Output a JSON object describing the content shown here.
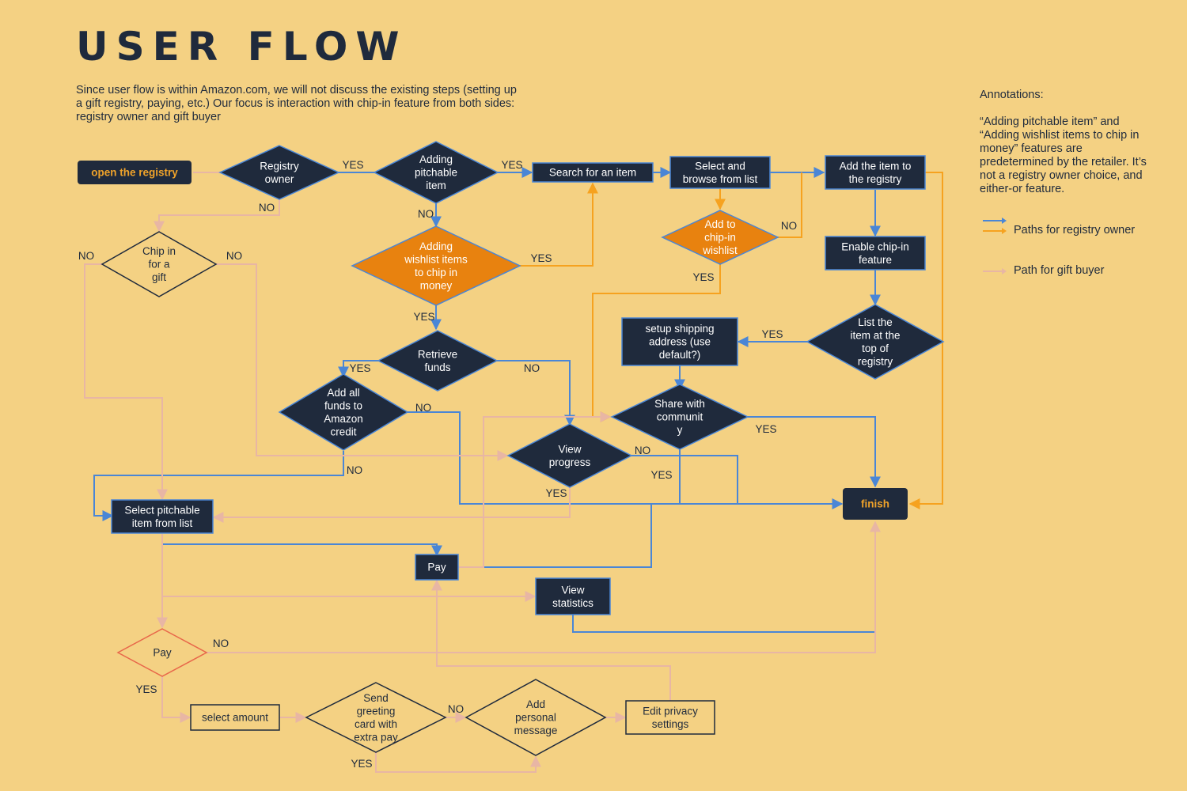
{
  "title": "USER FLOW",
  "intro": "Since user flow is within Amazon.com, we will not discuss the existing steps (setting up a gift registry, paying, etc.) Our focus is interaction with chip-in feature from both sides: registry owner and gift buyer",
  "annotations": {
    "heading": "Annotations:",
    "note": "“Adding pitchable item” and “Adding wishlist items to chip in money” features are predetermined by the retailer. It’s not a registry owner choice, and either-or feature.",
    "legend_owner": "Paths for registry owner",
    "legend_buyer": "Path for gift buyer"
  },
  "colors": {
    "background": "#f4d183",
    "node_dark": "#1f2a3c",
    "node_orange": "#e8820f",
    "owner_blue": "#4a86d6",
    "owner_orange": "#f6a21f",
    "buyer_pink": "#e8b6a4",
    "node_text_light": "#ffffff",
    "node_text_orange": "#f0a32a"
  },
  "nodes": [
    {
      "id": "open-registry",
      "lines": [
        "open the registry"
      ]
    },
    {
      "id": "registry-owner",
      "lines": [
        "Registry",
        "owner"
      ]
    },
    {
      "id": "adding-pitchable",
      "lines": [
        "Adding",
        "pitchable",
        "item"
      ]
    },
    {
      "id": "search-item",
      "lines": [
        "Search for an item"
      ]
    },
    {
      "id": "select-browse",
      "lines": [
        "Select and",
        "browse from list"
      ]
    },
    {
      "id": "add-to-registry",
      "lines": [
        "Add the item to",
        "the registry"
      ]
    },
    {
      "id": "chip-in-gift",
      "lines": [
        "Chip in",
        "for a",
        "gift"
      ]
    },
    {
      "id": "adding-wishlist",
      "lines": [
        "Adding",
        "wishlist items",
        "to chip in",
        "money"
      ]
    },
    {
      "id": "add-chipin-wishlist",
      "lines": [
        "Add to",
        "chip-in",
        "wishlist"
      ]
    },
    {
      "id": "enable-chipin",
      "lines": [
        "Enable chip-in",
        "feature"
      ]
    },
    {
      "id": "retrieve-funds",
      "lines": [
        "Retrieve",
        "funds"
      ]
    },
    {
      "id": "setup-shipping",
      "lines": [
        "setup shipping",
        "address (use",
        "default?)"
      ]
    },
    {
      "id": "list-top",
      "lines": [
        "List the",
        "item at the",
        "top of",
        "registry"
      ]
    },
    {
      "id": "add-funds-credit",
      "lines": [
        "Add all",
        "funds to",
        "Amazon",
        "credit"
      ]
    },
    {
      "id": "share-community",
      "lines": [
        "Share with",
        "communit",
        "y"
      ]
    },
    {
      "id": "view-progress",
      "lines": [
        "View",
        "progress"
      ]
    },
    {
      "id": "finish",
      "lines": [
        "finish"
      ]
    },
    {
      "id": "select-pitchable",
      "lines": [
        "Select pitchable",
        "item from list"
      ]
    },
    {
      "id": "pay-owner",
      "lines": [
        "Pay"
      ]
    },
    {
      "id": "view-statistics",
      "lines": [
        "View",
        "statistics"
      ]
    },
    {
      "id": "pay-buyer",
      "lines": [
        "Pay"
      ]
    },
    {
      "id": "select-amount",
      "lines": [
        "select amount"
      ]
    },
    {
      "id": "send-greeting",
      "lines": [
        "Send",
        "greeting",
        "card with",
        "extra pay"
      ]
    },
    {
      "id": "add-message",
      "lines": [
        "Add",
        "personal",
        "message"
      ]
    },
    {
      "id": "edit-privacy",
      "lines": [
        "Edit privacy",
        "settings"
      ]
    }
  ],
  "labels": [
    "YES",
    "NO",
    "YES",
    "NO",
    "YES",
    "NO",
    "YES",
    "NO",
    "NO",
    "YES",
    "YES",
    "NO",
    "YES",
    "NO",
    "YES",
    "YES",
    "NO",
    "NO",
    "YES",
    "NO",
    "YES",
    "NO",
    "YES"
  ]
}
